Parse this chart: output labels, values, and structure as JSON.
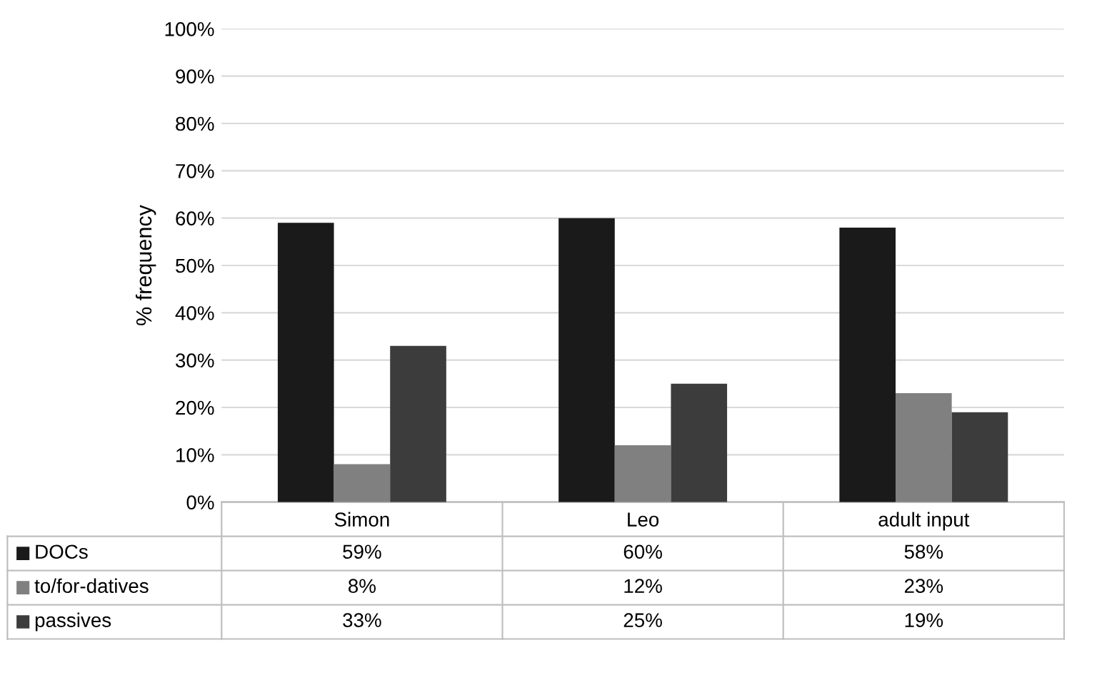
{
  "chart_data": {
    "type": "bar",
    "ylabel": "% frequency",
    "categories": [
      "Simon",
      "Leo",
      "adult input"
    ],
    "series": [
      {
        "name": "DOCs",
        "color": "#1a1a1a",
        "values": [
          59,
          60,
          58
        ],
        "value_labels": [
          "59%",
          "60%",
          "58%"
        ]
      },
      {
        "name": "to/for-datives",
        "color": "#808080",
        "values": [
          8,
          12,
          23
        ],
        "value_labels": [
          "8%",
          "12%",
          "23%"
        ]
      },
      {
        "name": "passives",
        "color": "#3c3c3c",
        "values": [
          33,
          25,
          19
        ],
        "value_labels": [
          "33%",
          "25%",
          "19%"
        ]
      }
    ],
    "ylim": [
      0,
      100
    ],
    "yticks": [
      {
        "value": 0,
        "label": "0%"
      },
      {
        "value": 10,
        "label": "10%"
      },
      {
        "value": 20,
        "label": "20%"
      },
      {
        "value": 30,
        "label": "30%"
      },
      {
        "value": 40,
        "label": "40%"
      },
      {
        "value": 50,
        "label": "50%"
      },
      {
        "value": 60,
        "label": "60%"
      },
      {
        "value": 70,
        "label": "70%"
      },
      {
        "value": 80,
        "label": "80%"
      },
      {
        "value": 90,
        "label": "90%"
      },
      {
        "value": 100,
        "label": "100%"
      }
    ],
    "grid": "y",
    "legend": "bottom"
  }
}
